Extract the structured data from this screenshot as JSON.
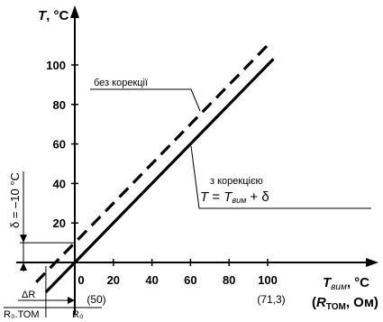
{
  "chart_data": {
    "type": "line",
    "y_axis": {
      "label_symbol": "T",
      "label_unit": ", °C",
      "ticks": [
        20,
        40,
        60,
        80,
        100
      ],
      "range": [
        -8,
        115
      ]
    },
    "x_axis": {
      "label_symbol": "T",
      "label_subscript": "вим",
      "label_unit": ", °C",
      "alt_label_symbol": "R",
      "alt_label_subscript": "ТОМ",
      "alt_label_unit": ", Ом)",
      "ticks": [
        0,
        20,
        40,
        60,
        80,
        100
      ],
      "alt_ticks": {
        "0": "(50)",
        "100": "(71,3)"
      },
      "range": [
        -30,
        150
      ]
    },
    "series": [
      {
        "name": "без корекції",
        "style": "dashed",
        "x": [
          -20,
          100
        ],
        "y": [
          -10,
          110
        ]
      },
      {
        "name": "з корекцією",
        "style": "solid",
        "x": [
          -15,
          103
        ],
        "y": [
          -15,
          103
        ]
      }
    ],
    "annotations": {
      "no_correction": "без корекції",
      "with_correction": "з корекцією",
      "formula_T": "T",
      "formula_eq": " = ",
      "formula_T2": "T",
      "formula_sub": "вим",
      "formula_plus": " + δ",
      "delta": "δ = –10 °C",
      "delta_R": "ΔR",
      "r0_tom": "R₀.ТОМ",
      "r0": "R₀"
    },
    "grid": false
  }
}
